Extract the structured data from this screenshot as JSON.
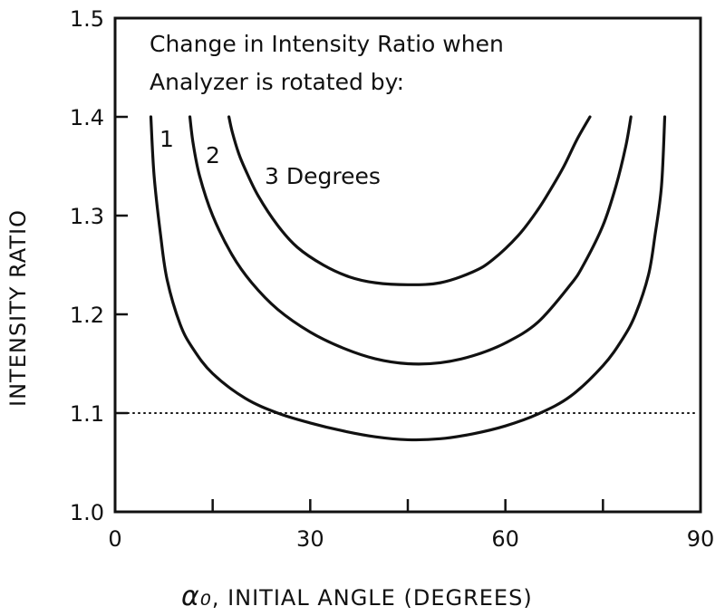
{
  "chart_data": {
    "type": "line",
    "title": "",
    "annotation_lines": [
      "Change in Intensity Ratio when",
      "Analyzer is rotated by:"
    ],
    "xlabel_symbol": "α₀",
    "xlabel": ", INITIAL ANGLE (DEGREES)",
    "ylabel": "INTENSITY RATIO",
    "xlim": [
      0,
      90
    ],
    "ylim": [
      1.0,
      1.5
    ],
    "x_ticks": [
      0,
      15,
      30,
      45,
      60,
      75,
      90
    ],
    "x_tick_labels": [
      {
        "value": 0,
        "label": "0"
      },
      {
        "value": 30,
        "label": "30"
      },
      {
        "value": 60,
        "label": "60"
      },
      {
        "value": 90,
        "label": "90"
      }
    ],
    "y_ticks": [
      {
        "value": 1.0,
        "label": "1.0"
      },
      {
        "value": 1.1,
        "label": "1.1"
      },
      {
        "value": 1.2,
        "label": "1.2"
      },
      {
        "value": 1.3,
        "label": "1.3"
      },
      {
        "value": 1.4,
        "label": "1.4"
      },
      {
        "value": 1.5,
        "label": "1.5"
      }
    ],
    "reference_line": {
      "y": 1.1,
      "style": "dotted"
    },
    "grid": false,
    "series": [
      {
        "name": "1",
        "x": [
          5.5,
          6,
          7,
          8,
          10,
          12,
          15,
          20,
          25,
          30,
          35,
          40,
          45,
          50,
          55,
          60,
          65,
          70,
          75,
          78,
          80,
          82,
          83,
          84,
          84.5
        ],
        "y": [
          1.4,
          1.34,
          1.28,
          1.235,
          1.19,
          1.165,
          1.14,
          1.115,
          1.1,
          1.09,
          1.082,
          1.076,
          1.073,
          1.074,
          1.079,
          1.087,
          1.099,
          1.117,
          1.148,
          1.175,
          1.2,
          1.24,
          1.28,
          1.33,
          1.4
        ]
      },
      {
        "name": "2",
        "x": [
          11.5,
          12,
          13,
          15,
          18,
          21,
          25,
          30,
          35,
          40,
          45,
          50,
          55,
          60,
          65,
          70,
          72,
          75,
          77,
          78.5,
          79.3
        ],
        "y": [
          1.4,
          1.373,
          1.34,
          1.3,
          1.26,
          1.232,
          1.205,
          1.182,
          1.166,
          1.155,
          1.15,
          1.151,
          1.158,
          1.171,
          1.192,
          1.23,
          1.25,
          1.29,
          1.33,
          1.37,
          1.4
        ]
      },
      {
        "name": "3 Degrees",
        "label_text": "3 Degrees",
        "x": [
          17.5,
          18,
          19,
          20,
          22,
          25,
          28,
          32,
          36,
          40,
          45,
          50,
          55,
          58,
          62,
          65,
          67,
          69,
          71,
          73
        ],
        "y": [
          1.4,
          1.385,
          1.363,
          1.347,
          1.32,
          1.29,
          1.268,
          1.25,
          1.238,
          1.232,
          1.23,
          1.232,
          1.243,
          1.255,
          1.28,
          1.306,
          1.327,
          1.35,
          1.377,
          1.4
        ]
      }
    ]
  }
}
